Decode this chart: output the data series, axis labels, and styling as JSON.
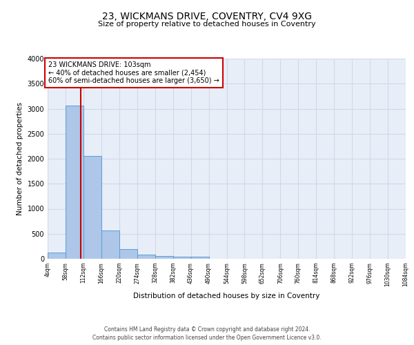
{
  "title1": "23, WICKMANS DRIVE, COVENTRY, CV4 9XG",
  "title2": "Size of property relative to detached houses in Coventry",
  "xlabel": "Distribution of detached houses by size in Coventry",
  "ylabel": "Number of detached properties",
  "bar_edges": [
    4,
    58,
    112,
    166,
    220,
    274,
    328,
    382,
    436,
    490,
    544,
    598,
    652,
    706,
    760,
    814,
    868,
    922,
    976,
    1030,
    1084
  ],
  "bar_heights": [
    130,
    3060,
    2060,
    565,
    200,
    80,
    55,
    45,
    45,
    0,
    0,
    0,
    0,
    0,
    0,
    0,
    0,
    0,
    0,
    0
  ],
  "bar_color": "#aec6e8",
  "bar_edge_color": "#5a9fd4",
  "property_size": 103,
  "property_line_color": "#cc0000",
  "annotation_box_color": "#cc0000",
  "annotation_text": "23 WICKMANS DRIVE: 103sqm\n← 40% of detached houses are smaller (2,454)\n60% of semi-detached houses are larger (3,650) →",
  "ylim": [
    0,
    4000
  ],
  "yticks": [
    0,
    500,
    1000,
    1500,
    2000,
    2500,
    3000,
    3500,
    4000
  ],
  "tick_labels": [
    "4sqm",
    "58sqm",
    "112sqm",
    "166sqm",
    "220sqm",
    "274sqm",
    "328sqm",
    "382sqm",
    "436sqm",
    "490sqm",
    "544sqm",
    "598sqm",
    "652sqm",
    "706sqm",
    "760sqm",
    "814sqm",
    "868sqm",
    "922sqm",
    "976sqm",
    "1030sqm",
    "1084sqm"
  ],
  "grid_color": "#d0d8e8",
  "background_color": "#e8eef8",
  "footnote1": "Contains HM Land Registry data © Crown copyright and database right 2024.",
  "footnote2": "Contains public sector information licensed under the Open Government Licence v3.0."
}
